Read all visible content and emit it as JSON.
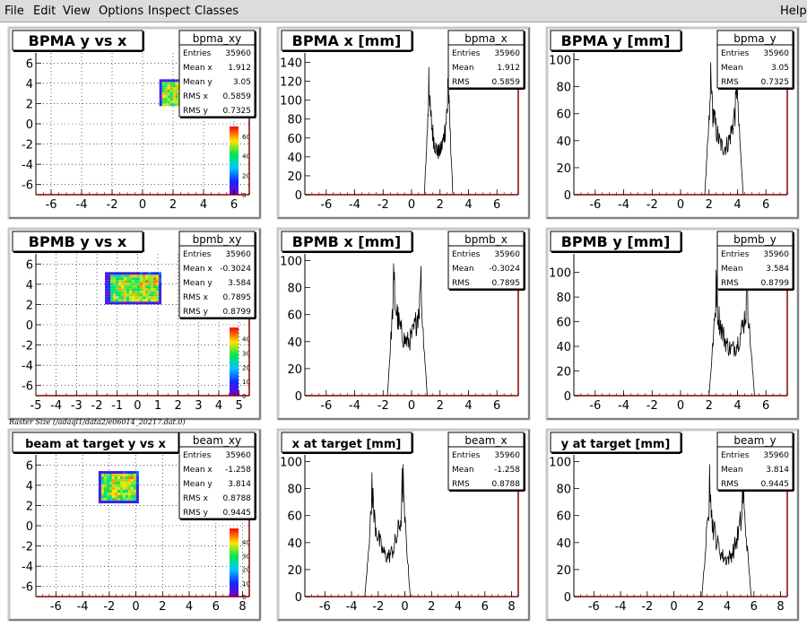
{
  "menu": {
    "file": "File",
    "edit": "Edit",
    "view": "View",
    "options": "Options",
    "inspect": "Inspect",
    "classes": "Classes",
    "help": "Help"
  },
  "canvas_caption": "Raster Size (/adaql1/data2/e06014_20217.dat.0)",
  "colors": {
    "frame": "#c0c0c0",
    "axis_x": "#8b0000",
    "hist_line": "#000000",
    "background": "#ffffff"
  },
  "chart_data": [
    {
      "type": "heatmap",
      "title": "BPMA y vs x",
      "stats": {
        "name": "bpma_xy",
        "rows": [
          [
            "Entries",
            "35960"
          ],
          [
            "Mean x",
            "1.912"
          ],
          [
            "Mean y",
            "3.05"
          ],
          [
            "RMS x",
            "0.5859"
          ],
          [
            "RMS y",
            "0.7325"
          ]
        ]
      },
      "xlim": [
        -7,
        7
      ],
      "ylim": [
        -7,
        7
      ],
      "xticks": [
        -6,
        -4,
        -2,
        0,
        2,
        4,
        6
      ],
      "yticks": [
        -6,
        -4,
        -2,
        0,
        2,
        4,
        6
      ],
      "grid": true,
      "region": {
        "x": [
          1.1,
          2.7
        ],
        "y": [
          1.8,
          4.4
        ],
        "center": [
          1.912,
          3.05
        ]
      },
      "colorbar": {
        "ticks": [
          0,
          20,
          40,
          60
        ],
        "max": 70
      }
    },
    {
      "type": "histogram",
      "title": "BPMA x [mm]",
      "stats": {
        "name": "bpma_x",
        "rows": [
          [
            "Entries",
            "35960"
          ],
          [
            "Mean",
            "1.912"
          ],
          [
            "RMS",
            "0.5859"
          ]
        ]
      },
      "xlim": [
        -7.5,
        7.5
      ],
      "ylim": [
        0,
        150
      ],
      "xticks": [
        -6,
        -4,
        -2,
        0,
        2,
        4,
        6
      ],
      "yticks": [
        0,
        20,
        40,
        60,
        80,
        100,
        120,
        140
      ],
      "range": [
        0.9,
        2.9
      ],
      "edge_peaks": [
        135,
        145
      ],
      "valley": 45
    },
    {
      "type": "histogram",
      "title": "BPMA y [mm]",
      "stats": {
        "name": "bpma_y",
        "rows": [
          [
            "Entries",
            "35960"
          ],
          [
            "Mean",
            "3.05"
          ],
          [
            "RMS",
            "0.7325"
          ]
        ]
      },
      "xlim": [
        -7.5,
        7.5
      ],
      "ylim": [
        0,
        105
      ],
      "xticks": [
        -6,
        -4,
        -2,
        0,
        2,
        4,
        6
      ],
      "yticks": [
        0,
        20,
        40,
        60,
        80,
        100
      ],
      "range": [
        1.7,
        4.4
      ],
      "edge_peaks": [
        98,
        95
      ],
      "valley": 35
    },
    {
      "type": "heatmap",
      "title": "BPMB y vs x",
      "stats": {
        "name": "bpmb_xy",
        "rows": [
          [
            "Entries",
            "35960"
          ],
          [
            "Mean x",
            "-0.3024"
          ],
          [
            "Mean y",
            "3.584"
          ],
          [
            "RMS x",
            "0.7895"
          ],
          [
            "RMS y",
            "0.8799"
          ]
        ]
      },
      "xlim": [
        -5,
        5.5
      ],
      "ylim": [
        -7,
        7
      ],
      "xticks": [
        -5,
        -4,
        -3,
        -2,
        -1,
        0,
        1,
        2,
        3,
        4,
        5
      ],
      "yticks": [
        -6,
        -4,
        -2,
        0,
        2,
        4,
        6
      ],
      "grid": true,
      "region": {
        "x": [
          -1.6,
          1.1
        ],
        "y": [
          2.2,
          5.2
        ],
        "center": [
          -0.3024,
          3.584
        ]
      },
      "colorbar": {
        "ticks": [
          0,
          10,
          20,
          30,
          40
        ],
        "max": 48
      }
    },
    {
      "type": "histogram",
      "title": "BPMB x [mm]",
      "stats": {
        "name": "bpmb_x",
        "rows": [
          [
            "Entries",
            "35960"
          ],
          [
            "Mean",
            "-0.3024"
          ],
          [
            "RMS",
            "0.7895"
          ]
        ]
      },
      "xlim": [
        -7.5,
        7.5
      ],
      "ylim": [
        0,
        105
      ],
      "xticks": [
        -6,
        -4,
        -2,
        0,
        2,
        4,
        6
      ],
      "yticks": [
        0,
        20,
        40,
        60,
        80,
        100
      ],
      "range": [
        -1.7,
        1.1
      ],
      "edge_peaks": [
        98,
        96
      ],
      "valley": 40
    },
    {
      "type": "histogram",
      "title": "BPMB y [mm]",
      "stats": {
        "name": "bpmb_y",
        "rows": [
          [
            "Entries",
            "35960"
          ],
          [
            "Mean",
            "3.584"
          ],
          [
            "RMS",
            "0.8799"
          ]
        ]
      },
      "xlim": [
        -7.5,
        7.5
      ],
      "ylim": [
        0,
        115
      ],
      "xticks": [
        -6,
        -4,
        -2,
        0,
        2,
        4,
        6
      ],
      "yticks": [
        0,
        20,
        40,
        60,
        80,
        100
      ],
      "range": [
        2.0,
        5.2
      ],
      "edge_peaks": [
        102,
        98
      ],
      "valley": 38
    },
    {
      "type": "heatmap",
      "title": "beam at target y vs x",
      "stats": {
        "name": "beam_xy",
        "rows": [
          [
            "Entries",
            "35960"
          ],
          [
            "Mean x",
            "-1.258"
          ],
          [
            "Mean y",
            "3.814"
          ],
          [
            "RMS x",
            "0.8788"
          ],
          [
            "RMS y",
            "0.9445"
          ]
        ]
      },
      "xlim": [
        -7.5,
        8.5
      ],
      "ylim": [
        -7,
        7
      ],
      "xticks": [
        -6,
        -4,
        -2,
        0,
        2,
        4,
        6,
        8
      ],
      "yticks": [
        -6,
        -4,
        -2,
        0,
        2,
        4,
        6
      ],
      "grid": true,
      "region": {
        "x": [
          -2.8,
          0.1
        ],
        "y": [
          2.3,
          5.4
        ],
        "center": [
          -1.258,
          3.814
        ]
      },
      "colorbar": {
        "ticks": [
          0,
          10,
          20,
          30,
          40
        ],
        "max": 50
      }
    },
    {
      "type": "histogram",
      "title": "x at target [mm]",
      "stats": {
        "name": "beam_x",
        "rows": [
          [
            "Entries",
            "35960"
          ],
          [
            "Mean",
            "-1.258"
          ],
          [
            "RMS",
            "0.8788"
          ]
        ]
      },
      "xlim": [
        -7.5,
        8.5
      ],
      "ylim": [
        0,
        105
      ],
      "xticks": [
        -6,
        -4,
        -2,
        0,
        2,
        4,
        6,
        8
      ],
      "yticks": [
        0,
        20,
        40,
        60,
        80,
        100
      ],
      "range": [
        -3.0,
        0.4
      ],
      "edge_peaks": [
        92,
        98
      ],
      "valley": 30
    },
    {
      "type": "histogram",
      "title": "y at target [mm]",
      "stats": {
        "name": "beam_y",
        "rows": [
          [
            "Entries",
            "35960"
          ],
          [
            "Mean",
            "3.814"
          ],
          [
            "RMS",
            "0.9445"
          ]
        ]
      },
      "xlim": [
        -7.5,
        8.5
      ],
      "ylim": [
        0,
        105
      ],
      "xticks": [
        -6,
        -4,
        -2,
        0,
        2,
        4,
        6,
        8
      ],
      "yticks": [
        0,
        20,
        40,
        60,
        80,
        100
      ],
      "range": [
        2.1,
        5.8
      ],
      "edge_peaks": [
        98,
        90
      ],
      "valley": 28
    }
  ]
}
